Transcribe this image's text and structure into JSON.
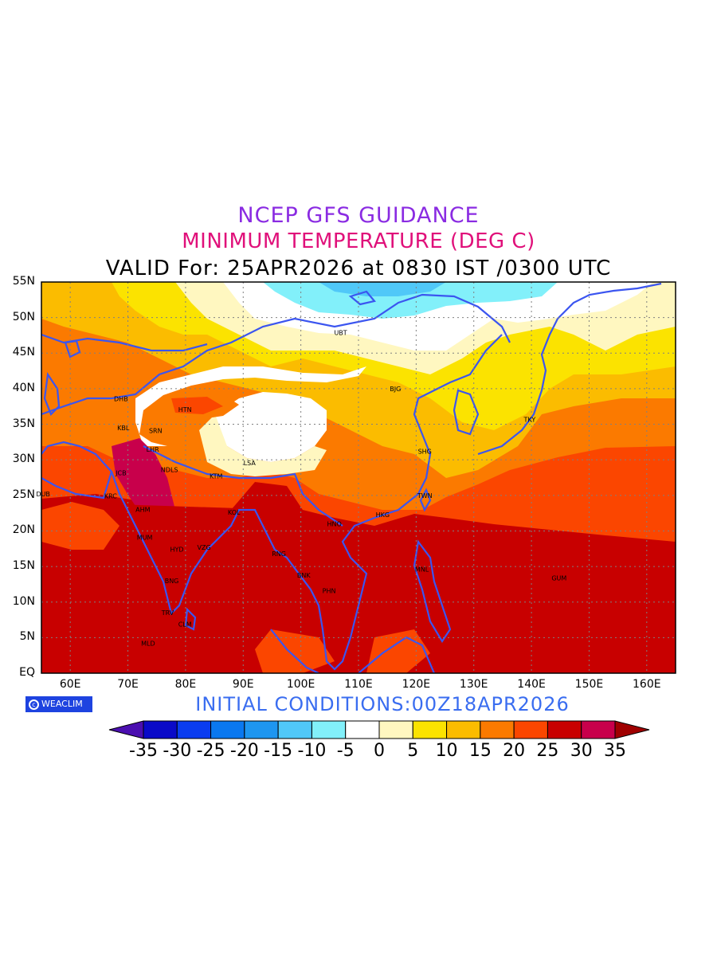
{
  "header": {
    "line1": "NCEP GFS GUIDANCE",
    "line2": "MINIMUM TEMPERATURE (DEG C)",
    "line3": "VALID For: 25APR2026 at 0830 IST /0300 UTC"
  },
  "footer": {
    "initial_conditions": "INITIAL  CONDITIONS:00Z18APR2026",
    "logo_text": "WEACLIM"
  },
  "axes": {
    "lat_labels": [
      "55N",
      "50N",
      "45N",
      "40N",
      "35N",
      "30N",
      "25N",
      "20N",
      "15N",
      "10N",
      "5N",
      "EQ"
    ],
    "lon_labels": [
      "60E",
      "70E",
      "80E",
      "90E",
      "100E",
      "110E",
      "120E",
      "130E",
      "140E",
      "150E",
      "160E"
    ],
    "lon_range": [
      55,
      165
    ],
    "lat_range": [
      0,
      55
    ],
    "grid": "dotted"
  },
  "stations": [
    {
      "code": "UBT",
      "lon": 106.9,
      "lat": 47.9
    },
    {
      "code": "BJG",
      "lon": 116.4,
      "lat": 40.0
    },
    {
      "code": "DHB",
      "lon": 68.8,
      "lat": 38.6
    },
    {
      "code": "HTN",
      "lon": 79.9,
      "lat": 37.1
    },
    {
      "code": "KBL",
      "lon": 69.2,
      "lat": 34.5
    },
    {
      "code": "SRN",
      "lon": 74.8,
      "lat": 34.1
    },
    {
      "code": "TKY",
      "lon": 139.7,
      "lat": 35.7
    },
    {
      "code": "LHR",
      "lon": 74.3,
      "lat": 31.5
    },
    {
      "code": "SHG",
      "lon": 121.5,
      "lat": 31.2
    },
    {
      "code": "LSA",
      "lon": 91.1,
      "lat": 29.6
    },
    {
      "code": "JCB",
      "lon": 68.8,
      "lat": 28.2
    },
    {
      "code": "NDLS",
      "lon": 77.2,
      "lat": 28.6
    },
    {
      "code": "KTM",
      "lon": 85.3,
      "lat": 27.7
    },
    {
      "code": "DUB",
      "lon": 55.3,
      "lat": 25.2
    },
    {
      "code": "KRC",
      "lon": 67.0,
      "lat": 24.9
    },
    {
      "code": "TWN",
      "lon": 121.5,
      "lat": 25.0
    },
    {
      "code": "AHM",
      "lon": 72.6,
      "lat": 23.0
    },
    {
      "code": "KOL",
      "lon": 88.4,
      "lat": 22.6
    },
    {
      "code": "HKG",
      "lon": 114.2,
      "lat": 22.3
    },
    {
      "code": "HNO",
      "lon": 105.8,
      "lat": 21.0
    },
    {
      "code": "MUM",
      "lon": 72.9,
      "lat": 19.1
    },
    {
      "code": "HYD",
      "lon": 78.5,
      "lat": 17.4
    },
    {
      "code": "VZG",
      "lon": 83.2,
      "lat": 17.7
    },
    {
      "code": "RNG",
      "lon": 96.2,
      "lat": 16.8
    },
    {
      "code": "MNL",
      "lon": 121.0,
      "lat": 14.6
    },
    {
      "code": "BNK",
      "lon": 100.5,
      "lat": 13.8
    },
    {
      "code": "GUM",
      "lon": 144.8,
      "lat": 13.4
    },
    {
      "code": "BNG",
      "lon": 77.6,
      "lat": 13.0
    },
    {
      "code": "PHN",
      "lon": 104.9,
      "lat": 11.6
    },
    {
      "code": "TRV",
      "lon": 76.9,
      "lat": 8.5
    },
    {
      "code": "CLM",
      "lon": 79.9,
      "lat": 6.9
    },
    {
      "code": "MLD",
      "lon": 73.5,
      "lat": 4.2
    }
  ],
  "colorbar": {
    "labels": [
      "-35",
      "-30",
      "-25",
      "-20",
      "-15",
      "-10",
      "-5",
      "0",
      "5",
      "10",
      "15",
      "20",
      "25",
      "30",
      "35"
    ],
    "low_color": "#4b0fb0",
    "colors": [
      "#0a0ac8",
      "#0a3cf0",
      "#0a78f0",
      "#1e96f0",
      "#50c8f8",
      "#82f0fa",
      "#ffffff",
      "#fff7c0",
      "#fbe300",
      "#fbbc00",
      "#fb7a00",
      "#fb4600",
      "#c80000",
      "#c8004b"
    ],
    "high_color": "#a00000"
  },
  "palette": {
    "border": "#3b55f0",
    "ocean_tropical": "#c80000",
    "ocean_mid": "#fb4600"
  }
}
